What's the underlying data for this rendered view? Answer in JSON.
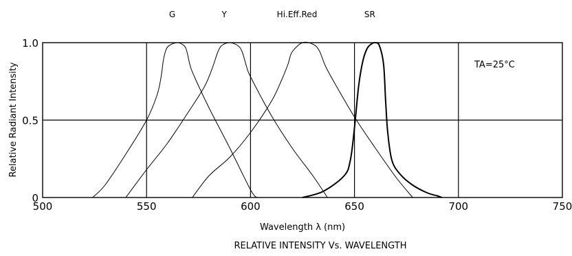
{
  "chart_data": {
    "type": "line",
    "caption": "RELATIVE INTENSITY Vs. WAVELENGTH",
    "xlabel": "Wavelength  λ  (nm)",
    "ylabel": "Relative  Radiant  Intensity",
    "xlim": [
      500,
      750
    ],
    "ylim": [
      0,
      1.0
    ],
    "x_ticks": [
      500,
      550,
      600,
      650,
      700,
      750
    ],
    "y_ticks": [
      {
        "value": 0,
        "label": "0"
      },
      {
        "value": 0.5,
        "label": "0.5"
      },
      {
        "value": 1.0,
        "label": "1.0"
      }
    ],
    "grid": true,
    "annotation": "TA=25°C",
    "series": [
      {
        "name": "G",
        "x": [
          524,
          530,
          540,
          550,
          555,
          557,
          558,
          559,
          560,
          562,
          565,
          567,
          569,
          571,
          573,
          580,
          590,
          600,
          603
        ],
        "y": [
          0,
          0.08,
          0.28,
          0.5,
          0.66,
          0.78,
          0.88,
          0.94,
          0.97,
          0.99,
          1.0,
          0.99,
          0.96,
          0.85,
          0.78,
          0.58,
          0.32,
          0.05,
          0
        ]
      },
      {
        "name": "Y",
        "x": [
          540,
          550,
          560,
          570,
          578,
          582,
          584,
          586,
          590,
          594,
          596,
          598,
          600,
          610,
          620,
          630,
          637
        ],
        "y": [
          0,
          0.18,
          0.35,
          0.55,
          0.72,
          0.85,
          0.93,
          0.98,
          1.0,
          0.98,
          0.94,
          0.85,
          0.78,
          0.53,
          0.32,
          0.14,
          0
        ]
      },
      {
        "name": "Hi.Eff.Red",
        "x": [
          572,
          580,
          590,
          600,
          610,
          615,
          618,
          620,
          625,
          630,
          633,
          636,
          640,
          650,
          660,
          670,
          678
        ],
        "y": [
          0,
          0.14,
          0.26,
          0.42,
          0.62,
          0.76,
          0.86,
          0.94,
          1.0,
          0.99,
          0.95,
          0.85,
          0.75,
          0.52,
          0.32,
          0.13,
          0
        ]
      },
      {
        "name": "SR",
        "bold": true,
        "x": [
          625,
          635,
          645,
          648,
          650,
          652,
          654,
          656,
          658,
          660,
          662,
          664,
          665,
          666,
          668,
          672,
          678,
          685,
          690,
          692
        ],
        "y": [
          0,
          0.04,
          0.14,
          0.24,
          0.45,
          0.72,
          0.88,
          0.96,
          0.99,
          1.0,
          0.98,
          0.86,
          0.62,
          0.42,
          0.24,
          0.15,
          0.08,
          0.03,
          0.01,
          0
        ]
      }
    ]
  }
}
